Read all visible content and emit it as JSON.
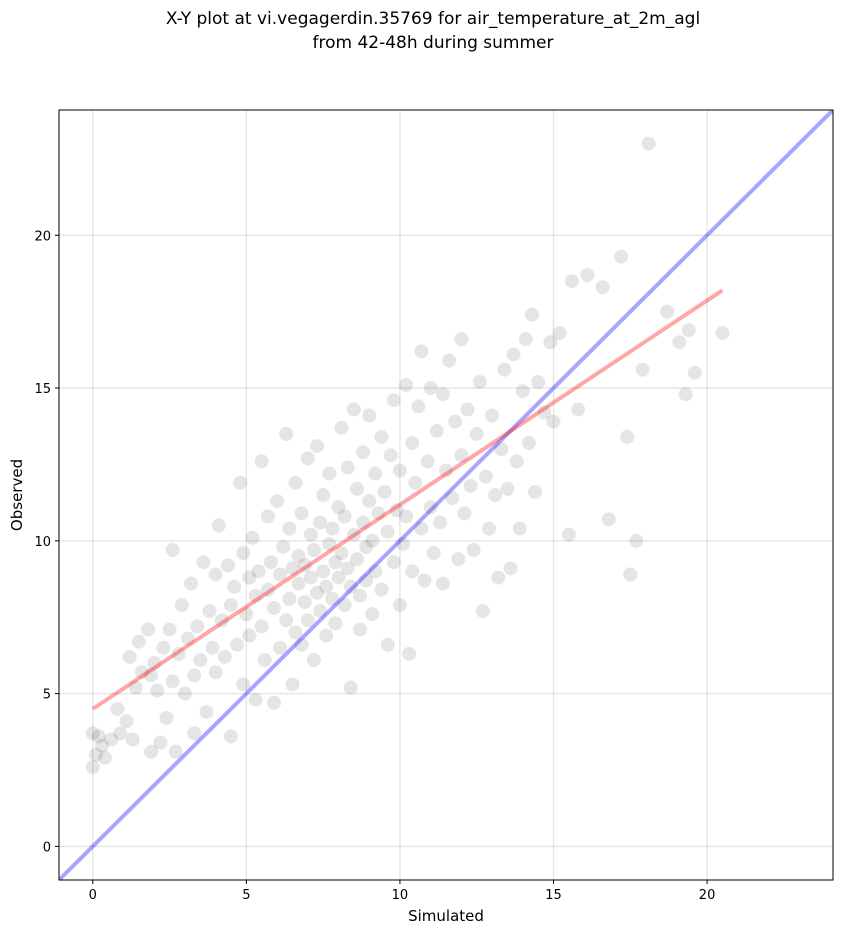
{
  "chart_data": {
    "type": "scatter",
    "title_lines": [
      "X-Y plot at vi.vegagerdin.35769 for air_temperature_at_2m_agl",
      "from 42-48h during summer"
    ],
    "xlabel": "Simulated",
    "ylabel": "Observed",
    "xlim": [
      -1.1,
      24.1
    ],
    "ylim": [
      -1.1,
      24.1
    ],
    "xticks": [
      0,
      5,
      10,
      15,
      20
    ],
    "yticks": [
      0,
      5,
      10,
      15,
      20
    ],
    "grid": true,
    "points_color": "#000000",
    "points_opacity": 0.1,
    "series": [
      {
        "kind": "points",
        "points": [
          [
            0.0,
            2.6
          ],
          [
            0.0,
            3.7
          ],
          [
            0.1,
            3.0
          ],
          [
            0.2,
            3.6
          ],
          [
            0.3,
            3.3
          ],
          [
            0.4,
            2.9
          ],
          [
            0.6,
            3.5
          ],
          [
            0.8,
            4.5
          ],
          [
            0.9,
            3.7
          ],
          [
            1.1,
            4.1
          ],
          [
            1.2,
            6.2
          ],
          [
            1.3,
            3.5
          ],
          [
            1.4,
            5.2
          ],
          [
            1.5,
            6.7
          ],
          [
            1.6,
            5.7
          ],
          [
            1.8,
            7.1
          ],
          [
            1.9,
            3.1
          ],
          [
            1.9,
            5.6
          ],
          [
            2.0,
            6.0
          ],
          [
            2.1,
            5.1
          ],
          [
            2.2,
            3.4
          ],
          [
            2.3,
            6.5
          ],
          [
            2.4,
            4.2
          ],
          [
            2.5,
            7.1
          ],
          [
            2.6,
            5.4
          ],
          [
            2.6,
            9.7
          ],
          [
            2.7,
            3.1
          ],
          [
            2.8,
            6.3
          ],
          [
            2.9,
            7.9
          ],
          [
            3.0,
            5.0
          ],
          [
            3.1,
            6.8
          ],
          [
            3.2,
            8.6
          ],
          [
            3.3,
            5.6
          ],
          [
            3.3,
            3.7
          ],
          [
            3.4,
            7.2
          ],
          [
            3.5,
            6.1
          ],
          [
            3.6,
            9.3
          ],
          [
            3.7,
            4.4
          ],
          [
            3.8,
            7.7
          ],
          [
            3.9,
            6.5
          ],
          [
            4.0,
            8.9
          ],
          [
            4.0,
            5.7
          ],
          [
            4.1,
            10.5
          ],
          [
            4.2,
            7.4
          ],
          [
            4.3,
            6.2
          ],
          [
            4.4,
            9.2
          ],
          [
            4.5,
            3.6
          ],
          [
            4.5,
            7.9
          ],
          [
            4.6,
            8.5
          ],
          [
            4.7,
            6.6
          ],
          [
            4.8,
            11.9
          ],
          [
            4.9,
            9.6
          ],
          [
            4.9,
            5.3
          ],
          [
            5.0,
            7.6
          ],
          [
            5.1,
            8.8
          ],
          [
            5.1,
            6.9
          ],
          [
            5.2,
            10.1
          ],
          [
            5.3,
            8.2
          ],
          [
            5.3,
            4.8
          ],
          [
            5.4,
            9.0
          ],
          [
            5.5,
            7.2
          ],
          [
            5.5,
            12.6
          ],
          [
            5.6,
            6.1
          ],
          [
            5.7,
            8.4
          ],
          [
            5.7,
            10.8
          ],
          [
            5.8,
            9.3
          ],
          [
            5.9,
            4.7
          ],
          [
            5.9,
            7.8
          ],
          [
            6.0,
            11.3
          ],
          [
            6.1,
            8.9
          ],
          [
            6.1,
            6.5
          ],
          [
            6.2,
            9.8
          ],
          [
            6.3,
            7.4
          ],
          [
            6.3,
            13.5
          ],
          [
            6.4,
            8.1
          ],
          [
            6.4,
            10.4
          ],
          [
            6.5,
            5.3
          ],
          [
            6.5,
            9.1
          ],
          [
            6.6,
            7.0
          ],
          [
            6.6,
            11.9
          ],
          [
            6.7,
            8.6
          ],
          [
            6.7,
            9.5
          ],
          [
            6.8,
            6.6
          ],
          [
            6.8,
            10.9
          ],
          [
            6.9,
            8.0
          ],
          [
            6.9,
            9.2
          ],
          [
            7.0,
            12.7
          ],
          [
            7.0,
            7.4
          ],
          [
            7.1,
            8.8
          ],
          [
            7.1,
            10.2
          ],
          [
            7.2,
            6.1
          ],
          [
            7.2,
            9.7
          ],
          [
            7.3,
            8.3
          ],
          [
            7.3,
            13.1
          ],
          [
            7.4,
            7.7
          ],
          [
            7.4,
            10.6
          ],
          [
            7.5,
            9.0
          ],
          [
            7.5,
            11.5
          ],
          [
            7.6,
            8.5
          ],
          [
            7.6,
            6.9
          ],
          [
            7.7,
            9.9
          ],
          [
            7.7,
            12.2
          ],
          [
            7.8,
            8.1
          ],
          [
            7.8,
            10.4
          ],
          [
            7.9,
            9.3
          ],
          [
            7.9,
            7.3
          ],
          [
            8.0,
            11.1
          ],
          [
            8.0,
            8.8
          ],
          [
            8.1,
            13.7
          ],
          [
            8.1,
            9.6
          ],
          [
            8.2,
            7.9
          ],
          [
            8.2,
            10.8
          ],
          [
            8.3,
            9.1
          ],
          [
            8.3,
            12.4
          ],
          [
            8.4,
            5.2
          ],
          [
            8.4,
            8.5
          ],
          [
            8.5,
            10.2
          ],
          [
            8.5,
            14.3
          ],
          [
            8.6,
            9.4
          ],
          [
            8.6,
            11.7
          ],
          [
            8.7,
            8.2
          ],
          [
            8.7,
            7.1
          ],
          [
            8.8,
            10.6
          ],
          [
            8.8,
            12.9
          ],
          [
            8.9,
            9.8
          ],
          [
            8.9,
            8.7
          ],
          [
            9.0,
            11.3
          ],
          [
            9.0,
            14.1
          ],
          [
            9.1,
            10.0
          ],
          [
            9.1,
            7.6
          ],
          [
            9.2,
            12.2
          ],
          [
            9.2,
            9.0
          ],
          [
            9.3,
            10.9
          ],
          [
            9.4,
            13.4
          ],
          [
            9.4,
            8.4
          ],
          [
            9.5,
            11.6
          ],
          [
            9.6,
            6.6
          ],
          [
            9.6,
            10.3
          ],
          [
            9.7,
            12.8
          ],
          [
            9.8,
            9.3
          ],
          [
            9.8,
            14.6
          ],
          [
            9.9,
            11.0
          ],
          [
            10.0,
            7.9
          ],
          [
            10.0,
            12.3
          ],
          [
            10.1,
            9.9
          ],
          [
            10.2,
            15.1
          ],
          [
            10.2,
            10.8
          ],
          [
            10.3,
            6.3
          ],
          [
            10.4,
            13.2
          ],
          [
            10.4,
            9.0
          ],
          [
            10.5,
            11.9
          ],
          [
            10.6,
            14.4
          ],
          [
            10.7,
            10.4
          ],
          [
            10.7,
            16.2
          ],
          [
            10.8,
            8.7
          ],
          [
            10.9,
            12.6
          ],
          [
            11.0,
            11.1
          ],
          [
            11.0,
            15.0
          ],
          [
            11.1,
            9.6
          ],
          [
            11.2,
            13.6
          ],
          [
            11.3,
            10.6
          ],
          [
            11.4,
            14.8
          ],
          [
            11.4,
            8.6
          ],
          [
            11.5,
            12.3
          ],
          [
            11.6,
            15.9
          ],
          [
            11.7,
            11.4
          ],
          [
            11.8,
            13.9
          ],
          [
            11.9,
            9.4
          ],
          [
            12.0,
            16.6
          ],
          [
            12.0,
            12.8
          ],
          [
            12.1,
            10.9
          ],
          [
            12.2,
            14.3
          ],
          [
            12.3,
            11.8
          ],
          [
            12.4,
            9.7
          ],
          [
            12.5,
            13.5
          ],
          [
            12.6,
            15.2
          ],
          [
            12.7,
            7.7
          ],
          [
            12.8,
            12.1
          ],
          [
            12.9,
            10.4
          ],
          [
            13.0,
            14.1
          ],
          [
            13.1,
            11.5
          ],
          [
            13.2,
            8.8
          ],
          [
            13.3,
            13.0
          ],
          [
            13.4,
            15.6
          ],
          [
            13.5,
            11.7
          ],
          [
            13.6,
            9.1
          ],
          [
            13.7,
            16.1
          ],
          [
            13.8,
            12.6
          ],
          [
            13.9,
            10.4
          ],
          [
            14.0,
            14.9
          ],
          [
            14.1,
            16.6
          ],
          [
            14.2,
            13.2
          ],
          [
            14.3,
            17.4
          ],
          [
            14.4,
            11.6
          ],
          [
            14.5,
            15.2
          ],
          [
            14.7,
            14.2
          ],
          [
            14.9,
            16.5
          ],
          [
            15.0,
            13.9
          ],
          [
            15.2,
            16.8
          ],
          [
            15.5,
            10.2
          ],
          [
            15.6,
            18.5
          ],
          [
            15.8,
            14.3
          ],
          [
            16.1,
            18.7
          ],
          [
            16.6,
            18.3
          ],
          [
            16.8,
            10.7
          ],
          [
            17.2,
            19.3
          ],
          [
            17.4,
            13.4
          ],
          [
            17.5,
            8.9
          ],
          [
            17.7,
            10.0
          ],
          [
            17.9,
            15.6
          ],
          [
            18.1,
            23.0
          ],
          [
            18.7,
            17.5
          ],
          [
            19.1,
            16.5
          ],
          [
            19.3,
            14.8
          ],
          [
            19.4,
            16.9
          ],
          [
            19.6,
            15.5
          ],
          [
            20.5,
            16.8
          ]
        ]
      },
      {
        "kind": "line",
        "color": "#0000ff",
        "opacity": 0.35,
        "points": [
          [
            -1.1,
            -1.1
          ],
          [
            24.1,
            24.1
          ]
        ]
      },
      {
        "kind": "line",
        "color": "#ff0000",
        "opacity": 0.35,
        "points": [
          [
            0.0,
            4.5
          ],
          [
            20.5,
            18.2
          ]
        ]
      }
    ]
  }
}
